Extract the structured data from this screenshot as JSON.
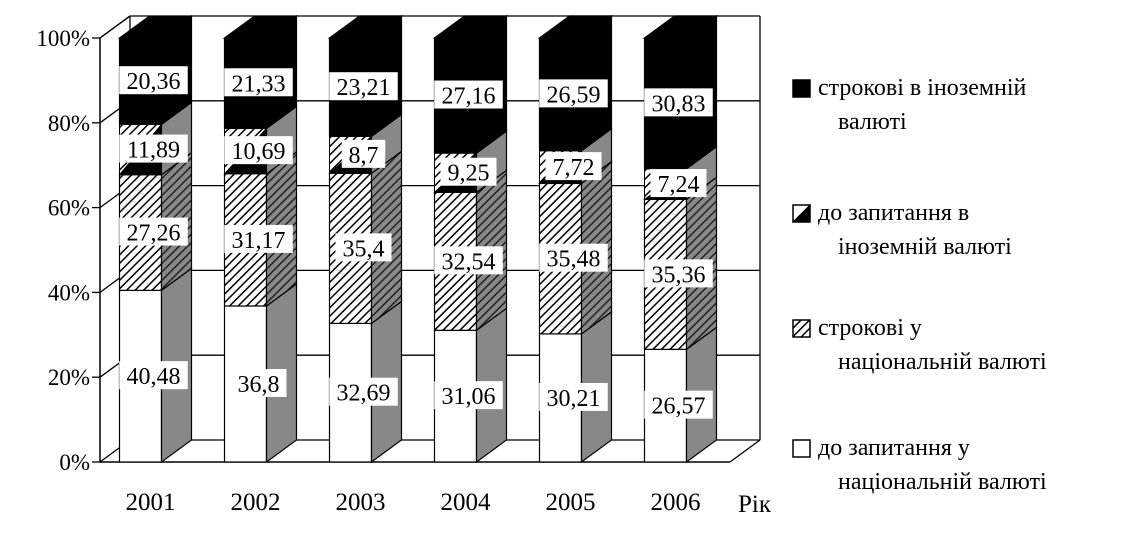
{
  "chart_data": {
    "type": "bar",
    "stacked": "100%",
    "three_d": true,
    "categories": [
      "2001",
      "2002",
      "2003",
      "2004",
      "2005",
      "2006"
    ],
    "xlabel": "Рік",
    "ylabel": "",
    "ylim": [
      0,
      100
    ],
    "y_ticks": [
      "0%",
      "20%",
      "40%",
      "60%",
      "80%",
      "100%"
    ],
    "grid": true,
    "legend_position": "right",
    "series": [
      {
        "name": "до запитання у національній валюті",
        "pattern": "white",
        "values": [
          40.48,
          36.8,
          32.69,
          31.06,
          30.21,
          26.57
        ],
        "labels": [
          "40,48",
          "36,8",
          "32,69",
          "31,06",
          "30,21",
          "26,57"
        ]
      },
      {
        "name": "строкові у національній валюті",
        "pattern": "diagonal-hatch",
        "values": [
          27.26,
          31.17,
          35.4,
          32.54,
          35.48,
          35.36
        ],
        "labels": [
          "27,26",
          "31,17",
          "35,4",
          "32,54",
          "35,48",
          "35,36"
        ]
      },
      {
        "name": "до запитання в іноземній валюті",
        "pattern": "half-black",
        "values": [
          11.89,
          10.69,
          8.7,
          9.25,
          7.72,
          7.24
        ],
        "labels": [
          "11,89",
          "10,69",
          "8,7",
          "9,25",
          "7,72",
          "7,24"
        ]
      },
      {
        "name": "строкові в іноземній валюті",
        "pattern": "black",
        "values": [
          20.36,
          21.33,
          23.21,
          27.16,
          26.59,
          30.83
        ],
        "labels": [
          "20,36",
          "21,33",
          "23,21",
          "27,16",
          "26,59",
          "30,83"
        ]
      }
    ],
    "legend_lines": [
      [
        "строкові в іноземній",
        "валюті"
      ],
      [
        "до запитання в",
        "іноземній валюті"
      ],
      [
        "строкові у",
        "національній валюті"
      ],
      [
        "до запитання у",
        "національній валюті"
      ]
    ],
    "colors": {
      "background": "#ffffff",
      "axis": "#000000",
      "side_face": "#888888",
      "hatch_side": "#6a6a6a"
    }
  }
}
